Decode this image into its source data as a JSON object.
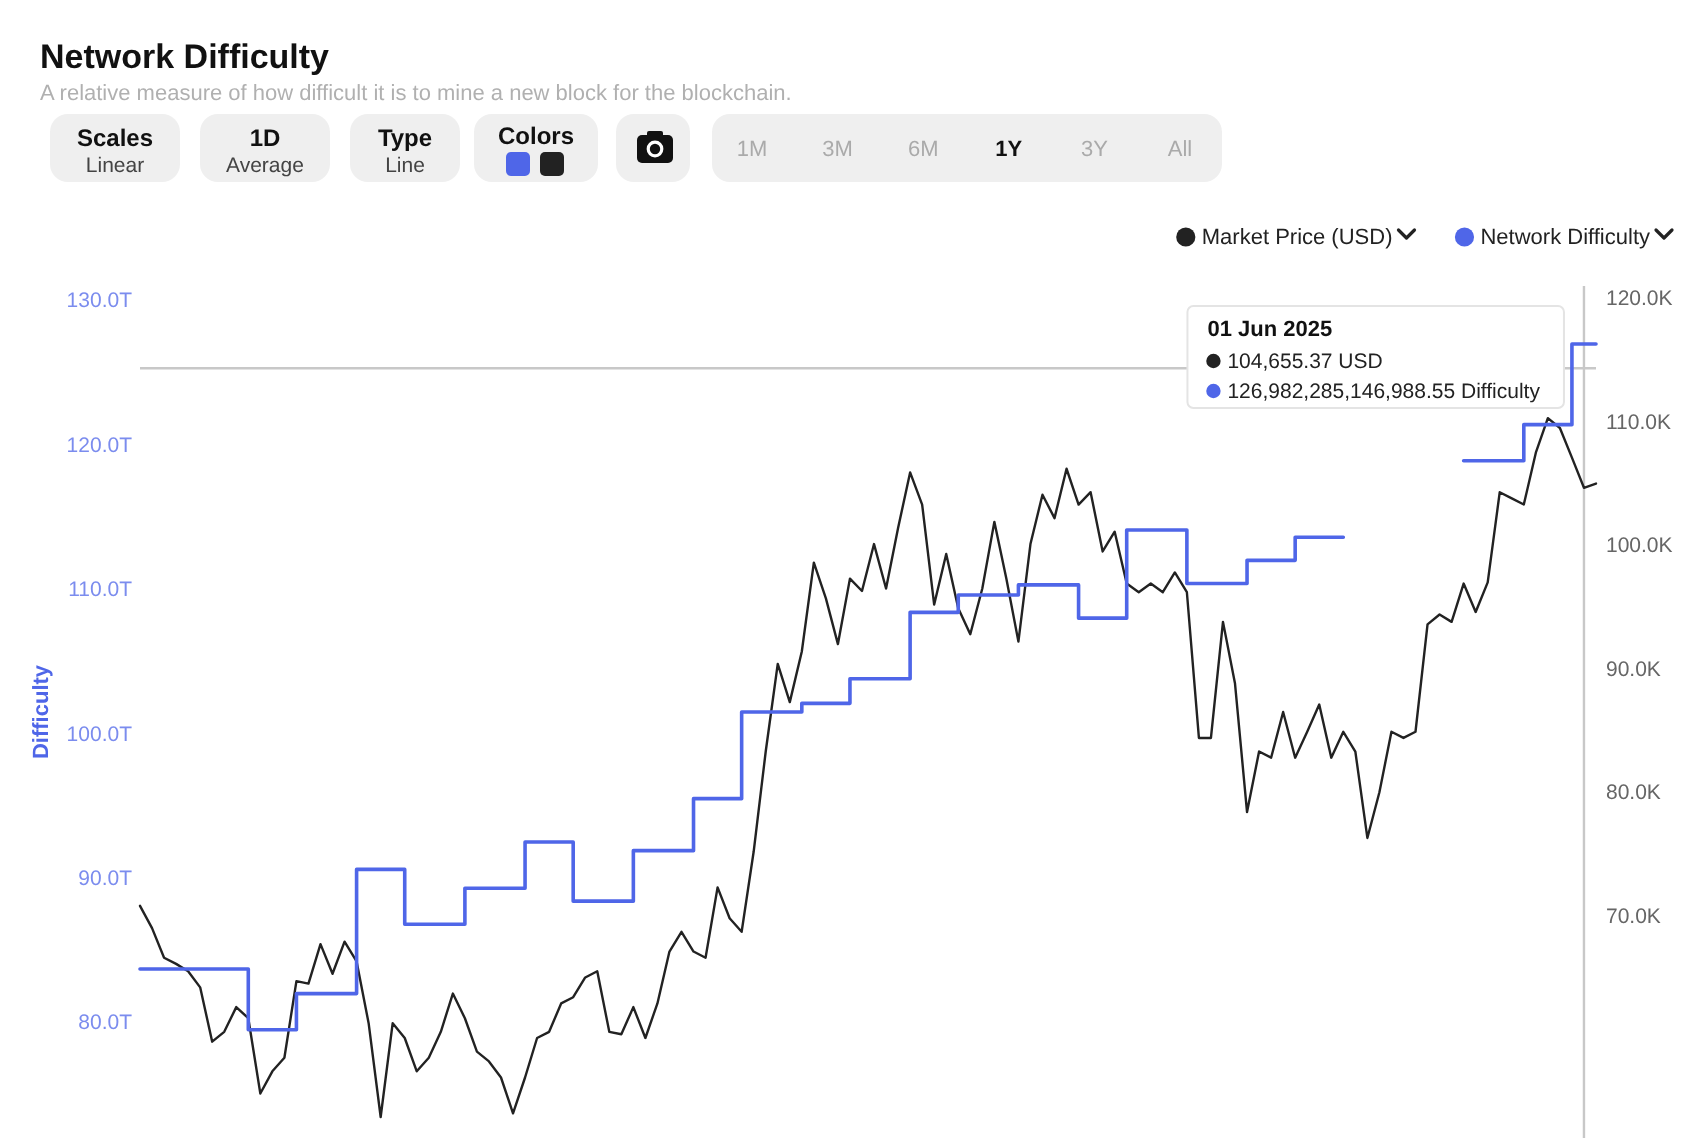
{
  "chart_data": {
    "type": "line",
    "title": "Network Difficulty",
    "subtitle": "A relative measure of how difficult it is to mine a new block for the blockchain.",
    "ylabel": "Difficulty",
    "categories": [
      null,
      null,
      null,
      null,
      null,
      null,
      null,
      null,
      null,
      null,
      null,
      null,
      null,
      null,
      null,
      null,
      null,
      null,
      null,
      null,
      null,
      null,
      null,
      null,
      null,
      null,
      null,
      null,
      null,
      null,
      null,
      null,
      null,
      null,
      null,
      null,
      null,
      null,
      null,
      null,
      null,
      null,
      null,
      null,
      null,
      null,
      null,
      null,
      null,
      null,
      null,
      null,
      null,
      null,
      null,
      null,
      null,
      null,
      null,
      null,
      null,
      null,
      null,
      null,
      null,
      null,
      null,
      null,
      null,
      null,
      null,
      null,
      null,
      null,
      null,
      null,
      null,
      null,
      null,
      null,
      null,
      null,
      null,
      null,
      null,
      null,
      null,
      null,
      null,
      null,
      null,
      null,
      null,
      null,
      null,
      null,
      null,
      null,
      null,
      null,
      null,
      null,
      null,
      null,
      null,
      null,
      null,
      null,
      null,
      null,
      null,
      null,
      null,
      null,
      null,
      null,
      null,
      null,
      null,
      null,
      null,
      null
    ],
    "ylim": [
      72,
      131
    ],
    "yticks": [
      {
        "value": 80,
        "label": "80.0T"
      },
      {
        "value": 90,
        "label": "90.0T"
      },
      {
        "value": 100,
        "label": "100.0T"
      },
      {
        "value": 110,
        "label": "110.0T"
      },
      {
        "value": 120,
        "label": "120.0T"
      },
      {
        "value": 130,
        "label": "130.0T"
      }
    ],
    "y2lim": [
      52,
      121
    ],
    "y2ticks": [
      {
        "value": 70,
        "label": "70.0K"
      },
      {
        "value": 80,
        "label": "80.0K"
      },
      {
        "value": 90,
        "label": "90.0K"
      },
      {
        "value": 100,
        "label": "100.0K"
      },
      {
        "value": 110,
        "label": "110.0K"
      },
      {
        "value": 120,
        "label": "120.0K"
      }
    ],
    "series": [
      {
        "name": "Market Price (USD)",
        "color": "#222222",
        "axis": "y2",
        "values": [
          70.8,
          69.0,
          66.6,
          66.1,
          65.5,
          64.2,
          59.8,
          60.6,
          62.6,
          61.7,
          55.6,
          57.4,
          58.5,
          64.7,
          64.5,
          67.7,
          65.3,
          67.9,
          66.3,
          61.3,
          53.7,
          61.3,
          60.1,
          57.4,
          58.5,
          60.6,
          63.7,
          61.7,
          59.0,
          58.2,
          56.9,
          54.0,
          56.9,
          60.1,
          60.6,
          62.9,
          63.4,
          65.0,
          65.5,
          60.6,
          60.4,
          62.6,
          60.1,
          62.9,
          67.1,
          68.7,
          67.1,
          66.6,
          72.3,
          69.8,
          68.7,
          75.2,
          83.3,
          90.4,
          87.3,
          91.4,
          98.6,
          95.7,
          92.0,
          97.3,
          96.3,
          100.1,
          96.5,
          101.4,
          105.9,
          103.3,
          95.2,
          99.3,
          94.9,
          92.8,
          96.5,
          101.9,
          97.3,
          92.2,
          100.1,
          104.1,
          102.2,
          106.2,
          103.3,
          104.3,
          99.5,
          101.1,
          96.9,
          96.2,
          96.9,
          96.2,
          97.8,
          96.2,
          84.4,
          84.4,
          93.8,
          88.8,
          78.4,
          83.3,
          82.8,
          86.5,
          82.8,
          84.9,
          87.1,
          82.8,
          84.9,
          83.3,
          76.3,
          80.0,
          84.9,
          84.4,
          84.9,
          93.6,
          94.4,
          93.8,
          96.9,
          94.6,
          97.0,
          104.3,
          103.8,
          103.3,
          107.5,
          110.3,
          109.5,
          107.1,
          104.66,
          105.0
        ]
      },
      {
        "name": "Network Difficulty",
        "color": "#4f66e8",
        "type": "step",
        "values": [
          83.7,
          83.7,
          83.7,
          83.7,
          83.7,
          83.7,
          83.7,
          83.7,
          83.7,
          79.5,
          79.5,
          79.5,
          79.5,
          82.0,
          82.0,
          82.0,
          82.0,
          82.0,
          90.6,
          90.6,
          90.6,
          90.6,
          86.8,
          86.8,
          86.8,
          86.8,
          86.8,
          89.3,
          89.3,
          89.3,
          89.3,
          89.3,
          92.5,
          92.5,
          92.5,
          92.5,
          88.4,
          88.4,
          88.4,
          88.4,
          88.4,
          91.9,
          91.9,
          91.9,
          91.9,
          91.9,
          95.5,
          95.5,
          95.5,
          95.5,
          101.5,
          101.5,
          101.5,
          101.5,
          101.5,
          102.1,
          102.1,
          102.1,
          102.1,
          103.8,
          103.8,
          103.8,
          103.8,
          103.8,
          108.4,
          108.4,
          108.4,
          108.4,
          109.6,
          109.6,
          109.6,
          109.6,
          109.6,
          110.3,
          110.3,
          110.3,
          110.3,
          110.3,
          108.0,
          108.0,
          108.0,
          108.0,
          114.1,
          114.1,
          114.1,
          114.1,
          114.1,
          110.4,
          110.4,
          110.4,
          110.4,
          110.4,
          112.0,
          112.0,
          112.0,
          112.0,
          113.6,
          113.6,
          113.6,
          113.6,
          113.6,
          null,
          null,
          null,
          null,
          null,
          null,
          null,
          null,
          null,
          118.9,
          118.9,
          118.9,
          118.9,
          118.9,
          121.4,
          121.4,
          121.4,
          121.4,
          126.98,
          126.98,
          126.98
        ]
      }
    ],
    "ref_lines": [
      {
        "axis": "y",
        "value": 125.3,
        "color": "#c8c8c8"
      }
    ],
    "legend": "top right",
    "annotations": [
      "Scales",
      "Linear",
      "1D",
      "Average",
      "Type",
      "Line",
      "Colors",
      "1M",
      "3M",
      "6M",
      "1Y",
      "3Y",
      "All",
      "01 Jun 2025",
      "104,655.37 USD",
      "126,982,285,146,988.55 Difficulty"
    ]
  }
}
